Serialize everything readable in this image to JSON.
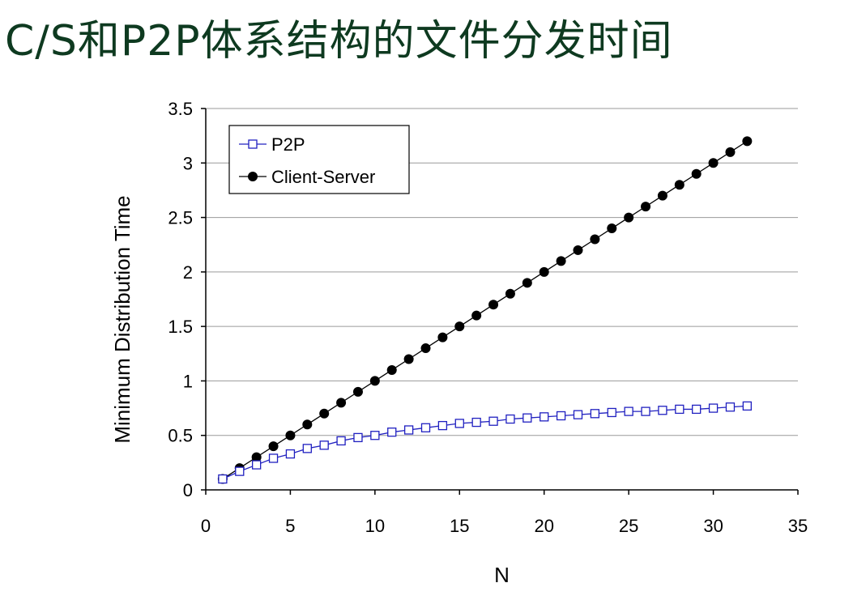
{
  "slide": {
    "title": "C/S和P2P体系结构的文件分发时间"
  },
  "chart_data": {
    "type": "line",
    "title": "C/S和P2P体系结构的文件分发时间",
    "xlabel": "N",
    "ylabel": "Minimum Distribution Time",
    "xlim": [
      0,
      35
    ],
    "ylim": [
      0,
      3.5
    ],
    "xticks": [
      0,
      5,
      10,
      15,
      20,
      25,
      30,
      35
    ],
    "yticks": [
      0,
      0.5,
      1,
      1.5,
      2,
      2.5,
      3,
      3.5
    ],
    "grid": "horizontal",
    "legend_position": "top-left",
    "x": [
      1,
      2,
      3,
      4,
      5,
      6,
      7,
      8,
      9,
      10,
      11,
      12,
      13,
      14,
      15,
      16,
      17,
      18,
      19,
      20,
      21,
      22,
      23,
      24,
      25,
      26,
      27,
      28,
      29,
      30,
      31,
      32
    ],
    "series": [
      {
        "name": "P2P",
        "color": "#2020c0",
        "marker": "open-square",
        "values": [
          0.1,
          0.17,
          0.23,
          0.29,
          0.33,
          0.38,
          0.41,
          0.45,
          0.48,
          0.5,
          0.53,
          0.55,
          0.57,
          0.59,
          0.61,
          0.62,
          0.63,
          0.65,
          0.66,
          0.67,
          0.68,
          0.69,
          0.7,
          0.71,
          0.72,
          0.72,
          0.73,
          0.74,
          0.74,
          0.75,
          0.76,
          0.77
        ]
      },
      {
        "name": "Client-Server",
        "color": "#000000",
        "marker": "filled-circle",
        "values": [
          0.1,
          0.2,
          0.3,
          0.4,
          0.5,
          0.6,
          0.7,
          0.8,
          0.9,
          1.0,
          1.1,
          1.2,
          1.3,
          1.4,
          1.5,
          1.6,
          1.7,
          1.8,
          1.9,
          2.0,
          2.1,
          2.2,
          2.3,
          2.4,
          2.5,
          2.6,
          2.7,
          2.8,
          2.9,
          3.0,
          3.1,
          3.2
        ]
      }
    ]
  }
}
